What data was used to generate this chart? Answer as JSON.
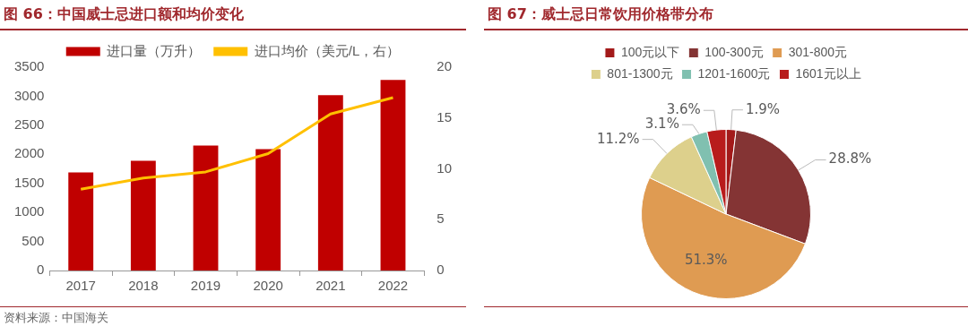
{
  "chart_data": [
    {
      "type": "bar",
      "title": "图 66：中国威士忌进口额和均价变化",
      "categories": [
        "2017",
        "2018",
        "2019",
        "2020",
        "2021",
        "2022"
      ],
      "series": [
        {
          "name": "进口量（万升）",
          "type": "bar",
          "color": "#c00000",
          "values": [
            1690,
            1890,
            2150,
            2090,
            3020,
            3280
          ]
        },
        {
          "name": "进口均价（美元/L，右）",
          "type": "line",
          "axis": "y2",
          "color": "#ffc000",
          "values": [
            8.0,
            9.1,
            9.7,
            11.5,
            15.4,
            17.0
          ]
        }
      ],
      "ylim": [
        0,
        3500
      ],
      "yticks": [
        0,
        500,
        1000,
        1500,
        2000,
        2500,
        3000,
        3500
      ],
      "y2lim": [
        0,
        20
      ],
      "y2ticks": [
        0,
        5,
        10,
        15,
        20
      ],
      "grid": false,
      "legend": "top",
      "marker": "none",
      "annotations": [
        "资料来源：中国海关"
      ]
    },
    {
      "type": "pie",
      "title": "图 67：威士忌日常饮用价格带分布",
      "categories": [
        "100元以下",
        "100-300元",
        "301-800元",
        "801-1300元",
        "1201-1600元",
        "1601元以上"
      ],
      "values": [
        1.9,
        28.8,
        51.3,
        11.2,
        3.1,
        3.6
      ],
      "colors": [
        "#a31a1a",
        "#843434",
        "#df9b52",
        "#ddd08c",
        "#80c0b0",
        "#b81c1c"
      ],
      "value_labels": [
        "1.9%",
        "28.8%",
        "51.3%",
        "11.2%",
        "3.1%",
        "3.6%"
      ],
      "legend": "top"
    }
  ]
}
